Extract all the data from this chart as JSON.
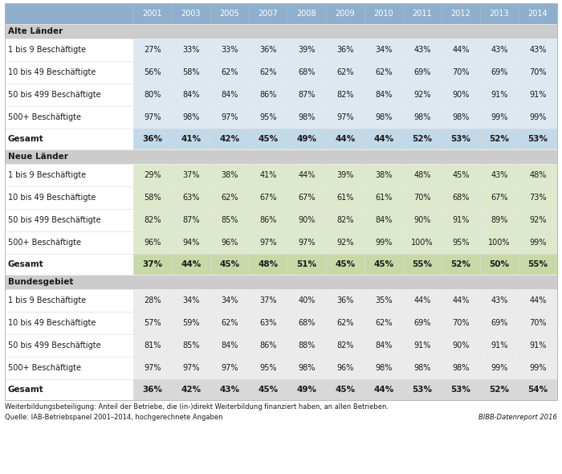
{
  "columns": [
    "",
    "2001",
    "2003",
    "2005",
    "2007",
    "2008",
    "2009",
    "2010",
    "2011",
    "2012",
    "2013",
    "2014"
  ],
  "sections": [
    {
      "section_label": "Alte Länder",
      "rows": [
        {
          "label": "1 bis 9 Beschäftigte",
          "values": [
            "27%",
            "33%",
            "33%",
            "36%",
            "39%",
            "36%",
            "34%",
            "43%",
            "44%",
            "43%",
            "43%"
          ]
        },
        {
          "label": "10 bis 49 Beschäftigte",
          "values": [
            "56%",
            "58%",
            "62%",
            "62%",
            "68%",
            "62%",
            "62%",
            "69%",
            "70%",
            "69%",
            "70%"
          ]
        },
        {
          "label": "50 bis 499 Beschäftigte",
          "values": [
            "80%",
            "84%",
            "84%",
            "86%",
            "87%",
            "82%",
            "84%",
            "92%",
            "90%",
            "91%",
            "91%"
          ]
        },
        {
          "label": "500+ Beschäftigte",
          "values": [
            "97%",
            "98%",
            "97%",
            "95%",
            "98%",
            "97%",
            "98%",
            "98%",
            "98%",
            "99%",
            "99%"
          ]
        }
      ],
      "gesamt": [
        "36%",
        "41%",
        "42%",
        "45%",
        "49%",
        "44%",
        "44%",
        "52%",
        "53%",
        "52%",
        "53%"
      ],
      "data_bg": "#dde8f0",
      "gesamt_bg": "#c2d9ea",
      "section_bg": "#d0d0d0"
    },
    {
      "section_label": "Neue Länder",
      "rows": [
        {
          "label": "1 bis 9 Beschäftigte",
          "values": [
            "29%",
            "37%",
            "38%",
            "41%",
            "44%",
            "39%",
            "38%",
            "48%",
            "45%",
            "43%",
            "48%"
          ]
        },
        {
          "label": "10 bis 49 Beschäftigte",
          "values": [
            "58%",
            "63%",
            "62%",
            "67%",
            "67%",
            "61%",
            "61%",
            "70%",
            "68%",
            "67%",
            "73%"
          ]
        },
        {
          "label": "50 bis 499 Beschäftigte",
          "values": [
            "82%",
            "87%",
            "85%",
            "86%",
            "90%",
            "82%",
            "84%",
            "90%",
            "91%",
            "89%",
            "92%"
          ]
        },
        {
          "label": "500+ Beschäftigte",
          "values": [
            "96%",
            "94%",
            "96%",
            "97%",
            "97%",
            "92%",
            "99%",
            "100%",
            "95%",
            "100%",
            "99%"
          ]
        }
      ],
      "gesamt": [
        "37%",
        "44%",
        "45%",
        "48%",
        "51%",
        "45%",
        "45%",
        "55%",
        "52%",
        "50%",
        "55%"
      ],
      "data_bg": "#dde8cc",
      "gesamt_bg": "#c8d9a8",
      "section_bg": "#d0d0d0"
    },
    {
      "section_label": "Bundesgebiet",
      "rows": [
        {
          "label": "1 bis 9 Beschäftigte",
          "values": [
            "28%",
            "34%",
            "34%",
            "37%",
            "40%",
            "36%",
            "35%",
            "44%",
            "44%",
            "43%",
            "44%"
          ]
        },
        {
          "label": "10 bis 49 Beschäftigte",
          "values": [
            "57%",
            "59%",
            "62%",
            "63%",
            "68%",
            "62%",
            "62%",
            "69%",
            "70%",
            "69%",
            "70%"
          ]
        },
        {
          "label": "50 bis 499 Beschäftigte",
          "values": [
            "81%",
            "85%",
            "84%",
            "86%",
            "88%",
            "82%",
            "84%",
            "91%",
            "90%",
            "91%",
            "91%"
          ]
        },
        {
          "label": "500+ Beschäftigte",
          "values": [
            "97%",
            "97%",
            "97%",
            "95%",
            "98%",
            "96%",
            "98%",
            "98%",
            "98%",
            "99%",
            "99%"
          ]
        }
      ],
      "gesamt": [
        "36%",
        "42%",
        "43%",
        "45%",
        "49%",
        "45%",
        "44%",
        "53%",
        "53%",
        "52%",
        "54%"
      ],
      "data_bg": "#ebebeb",
      "gesamt_bg": "#d8d8d8",
      "section_bg": "#d0d0d0"
    }
  ],
  "header_bg": "#8fb0cc",
  "header_text_color": "#ffffff",
  "white_bg": "#ffffff",
  "section_header_bg": "#cccccc",
  "footnote1": "Weiterbildungsbeteiligung: Anteil der Betriebe, die (in-)direkt Weiterbildung finanziert haben, an allen Betrieben.",
  "footnote2": "Quelle: IAB-Betriebspanel 2001–2014, hochgerechnete Angaben",
  "source_right": "BIBB-Datenreport 2016",
  "col_widths_ratio": [
    2.6,
    0.78,
    0.78,
    0.78,
    0.78,
    0.78,
    0.78,
    0.78,
    0.78,
    0.78,
    0.78,
    0.78
  ]
}
